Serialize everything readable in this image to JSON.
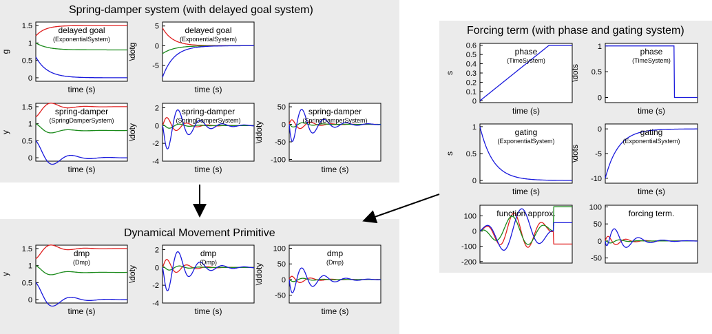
{
  "panels": {
    "spring": "Spring-damper system (with delayed goal system)",
    "forcing": "Forcing term (with phase and gating system)",
    "dmp": "Dynamical Movement Primitive"
  },
  "colors": {
    "red": "#e02020",
    "green": "#1a8a1a",
    "blue": "#1a1adc",
    "panel": "#ebebeb"
  },
  "xlabel": "time (s)",
  "chart_data": [
    {
      "id": "sd-g",
      "type": "line",
      "title": "delayed goal",
      "subtitle": "(ExponentialSystem)",
      "ylabel": "g",
      "xlabel": "time (s)",
      "ylim": [
        -0.1,
        1.6
      ],
      "yticks": [
        "0",
        "0.5",
        "1",
        "1.5"
      ],
      "ytickvals": [
        0,
        0.5,
        1,
        1.5
      ],
      "series": [
        {
          "color": "red",
          "kind": "rise",
          "a": 1.2,
          "b": 1.5,
          "k": 10
        },
        {
          "color": "green",
          "kind": "rise",
          "a": 1.0,
          "b": 0.8,
          "k": 8
        },
        {
          "color": "blue",
          "kind": "rise",
          "a": 0.6,
          "b": 0.0,
          "k": 8
        }
      ]
    },
    {
      "id": "sd-dg",
      "type": "line",
      "title": "delayed goal",
      "subtitle": "(ExponentialSystem)",
      "ylabel": "\\dotg",
      "xlabel": "time (s)",
      "ylim": [
        -9,
        6
      ],
      "yticks": [
        "-5",
        "0",
        "5"
      ],
      "ytickvals": [
        -5,
        0,
        5
      ],
      "series": [
        {
          "color": "red",
          "kind": "rise",
          "a": 4.5,
          "b": 0,
          "k": 9
        },
        {
          "color": "green",
          "kind": "rise",
          "a": -2,
          "b": 0,
          "k": 8
        },
        {
          "color": "blue",
          "kind": "rise",
          "a": -8,
          "b": 0,
          "k": 8
        }
      ]
    },
    {
      "id": "sd-y",
      "type": "line",
      "title": "spring-damper",
      "subtitle": "(SpringDamperSystem)",
      "ylabel": "y",
      "xlabel": "time (s)",
      "ylim": [
        -0.1,
        1.6
      ],
      "yticks": [
        "0",
        "0.5",
        "1",
        "1.5"
      ],
      "ytickvals": [
        0,
        0.5,
        1,
        1.5
      ],
      "series": [
        {
          "color": "red",
          "kind": "osc",
          "a": 1.2,
          "b": 1.5,
          "amp": 0.1,
          "k": 6,
          "w": 28
        },
        {
          "color": "green",
          "kind": "osc",
          "a": 1.0,
          "b": 0.8,
          "amp": 0.05,
          "k": 6,
          "w": 28
        },
        {
          "color": "blue",
          "kind": "osc",
          "a": 0.5,
          "b": 0.0,
          "amp": 0.45,
          "k": 5,
          "w": 26
        }
      ]
    },
    {
      "id": "sd-dy",
      "type": "line",
      "title": "spring-damper",
      "subtitle": "(SpringDamperSystem)",
      "ylabel": "\\doty",
      "xlabel": "time (s)",
      "ylim": [
        -4,
        2.5
      ],
      "yticks": [
        "-4",
        "-2",
        "0",
        "2"
      ],
      "ytickvals": [
        -4,
        -2,
        0,
        2
      ],
      "series": [
        {
          "color": "red",
          "kind": "damp",
          "amp": 1.4,
          "k": 6,
          "w": 28,
          "ph": 0.3
        },
        {
          "color": "green",
          "kind": "damp",
          "amp": 0.5,
          "k": 6,
          "w": 28,
          "ph": 2.5
        },
        {
          "color": "blue",
          "kind": "damp",
          "amp": -3.8,
          "k": 4.5,
          "w": 26,
          "ph": 0.2
        }
      ]
    },
    {
      "id": "sd-ddy",
      "type": "line",
      "title": "spring-damper",
      "subtitle": "(SpringDamperSystem)",
      "ylabel": "\\ddoty",
      "xlabel": "time (s)",
      "ylim": [
        -105,
        60
      ],
      "yticks": [
        "-100",
        "-50",
        "0",
        "50"
      ],
      "ytickvals": [
        -100,
        -50,
        0,
        50
      ],
      "series": [
        {
          "color": "red",
          "kind": "damp",
          "amp": 25,
          "k": 6,
          "w": 28,
          "ph": 1.2
        },
        {
          "color": "green",
          "kind": "damp",
          "amp": 12,
          "k": 6,
          "w": 28,
          "ph": 3.5
        },
        {
          "color": "blue",
          "kind": "damp",
          "amp": -80,
          "k": 4.5,
          "w": 26,
          "ph": 1.0
        }
      ]
    },
    {
      "id": "fo-phase",
      "type": "line",
      "title": "phase",
      "subtitle": "(TimeSystem)",
      "ylabel": "s",
      "xlabel": "time (s)",
      "ylim": [
        -0.02,
        0.62
      ],
      "yticks": [
        "0",
        "0.1",
        "0.2",
        "0.3",
        "0.4",
        "0.5",
        "0.6"
      ],
      "ytickvals": [
        0,
        0.1,
        0.2,
        0.3,
        0.4,
        0.5,
        0.6
      ],
      "series": [
        {
          "color": "blue",
          "kind": "ramp",
          "a": 0,
          "b": 0.6,
          "t": 0.75
        }
      ]
    },
    {
      "id": "fo-dphase",
      "type": "line",
      "title": "phase",
      "subtitle": "(TimeSystem)",
      "ylabel": "\\dots",
      "xlabel": "time (s)",
      "ylim": [
        -0.1,
        1.05
      ],
      "yticks": [
        "0",
        "0.5",
        "1"
      ],
      "ytickvals": [
        0,
        0.5,
        1
      ],
      "series": [
        {
          "color": "blue",
          "kind": "step",
          "a": 1,
          "b": 0,
          "t": 0.75
        }
      ]
    },
    {
      "id": "fo-gating",
      "type": "line",
      "title": "gating",
      "subtitle": "(ExponentialSystem)",
      "ylabel": "s",
      "xlabel": "time (s)",
      "ylim": [
        -0.05,
        1.05
      ],
      "yticks": [
        "0",
        "0.5",
        "1"
      ],
      "ytickvals": [
        0,
        0.5,
        1
      ],
      "series": [
        {
          "color": "blue",
          "kind": "rise",
          "a": 1,
          "b": 0,
          "k": 7
        }
      ]
    },
    {
      "id": "fo-dgating",
      "type": "line",
      "title": "gating",
      "subtitle": "(ExponentialSystem)",
      "ylabel": "\\dots",
      "xlabel": "time (s)",
      "ylim": [
        -11,
        1
      ],
      "yticks": [
        "-10",
        "-5",
        "0"
      ],
      "ytickvals": [
        -10,
        -5,
        0
      ],
      "series": [
        {
          "color": "blue",
          "kind": "rise",
          "a": -10,
          "b": 0,
          "k": 7
        }
      ]
    },
    {
      "id": "fo-fa",
      "type": "line",
      "title": "function approx.",
      "subtitle": "",
      "ylabel": "",
      "xlabel": "",
      "ylim": [
        -210,
        170
      ],
      "yticks": [
        "-200",
        "-100",
        "0",
        "100"
      ],
      "ytickvals": [
        -200,
        -100,
        0,
        100
      ],
      "series": [
        {
          "color": "red",
          "kind": "wav",
          "amp": 120,
          "w": 20,
          "ph": 0.5,
          "end": -85,
          "cut": 0.8
        },
        {
          "color": "green",
          "kind": "wav",
          "amp": 100,
          "w": 17,
          "ph": 2.0,
          "end": 160,
          "cut": 0.8
        },
        {
          "color": "blue",
          "kind": "wav",
          "amp": 150,
          "w": 15,
          "ph": 1.0,
          "end": 55,
          "cut": 0.8
        }
      ]
    },
    {
      "id": "fo-ft",
      "type": "line",
      "title": "forcing term.",
      "subtitle": "",
      "ylabel": "",
      "xlabel": "",
      "ylim": [
        -65,
        105
      ],
      "yticks": [
        "-50",
        "0",
        "50",
        "100"
      ],
      "ytickvals": [
        -50,
        0,
        50,
        100
      ],
      "series": [
        {
          "color": "red",
          "kind": "damp",
          "amp": 25,
          "k": 7,
          "w": 30,
          "ph": 1.0
        },
        {
          "color": "green",
          "kind": "damp",
          "amp": 10,
          "k": 7,
          "w": 30,
          "ph": 3.0
        },
        {
          "color": "blue",
          "kind": "damp",
          "amp": -60,
          "k": 5,
          "w": 24,
          "ph": 2.2
        }
      ]
    },
    {
      "id": "dmp-y",
      "type": "line",
      "title": "dmp",
      "subtitle": "(Dmp)",
      "ylabel": "y",
      "xlabel": "time (s)",
      "ylim": [
        -0.1,
        1.6
      ],
      "yticks": [
        "0",
        "0.5",
        "1",
        "1.5"
      ],
      "ytickvals": [
        0,
        0.5,
        1,
        1.5
      ],
      "series": [
        {
          "color": "red",
          "kind": "osc",
          "a": 1.2,
          "b": 1.5,
          "amp": 0.1,
          "k": 6,
          "w": 28
        },
        {
          "color": "green",
          "kind": "osc",
          "a": 1.0,
          "b": 0.8,
          "amp": 0.05,
          "k": 6,
          "w": 28
        },
        {
          "color": "blue",
          "kind": "osc",
          "a": 0.5,
          "b": 0.0,
          "amp": 0.45,
          "k": 5,
          "w": 26
        }
      ]
    },
    {
      "id": "dmp-dy",
      "type": "line",
      "title": "dmp",
      "subtitle": "(Dmp)",
      "ylabel": "\\doty",
      "xlabel": "time (s)",
      "ylim": [
        -4,
        2.5
      ],
      "yticks": [
        "-4",
        "-2",
        "0",
        "2"
      ],
      "ytickvals": [
        -4,
        -2,
        0,
        2
      ],
      "series": [
        {
          "color": "red",
          "kind": "damp",
          "amp": 1.4,
          "k": 6,
          "w": 28,
          "ph": 0.3
        },
        {
          "color": "green",
          "kind": "damp",
          "amp": 0.5,
          "k": 6,
          "w": 28,
          "ph": 2.5
        },
        {
          "color": "blue",
          "kind": "damp",
          "amp": -3.8,
          "k": 4.5,
          "w": 26,
          "ph": 0.2
        }
      ]
    },
    {
      "id": "dmp-ddy",
      "type": "line",
      "title": "dmp",
      "subtitle": "(Dmp)",
      "ylabel": "\\ddoty",
      "xlabel": "time (s)",
      "ylim": [
        -75,
        110
      ],
      "yticks": [
        "-50",
        "0",
        "50",
        "100"
      ],
      "ytickvals": [
        -50,
        0,
        50,
        100
      ],
      "series": [
        {
          "color": "red",
          "kind": "damp",
          "amp": 20,
          "k": 6,
          "w": 28,
          "ph": 1.2
        },
        {
          "color": "green",
          "kind": "damp",
          "amp": 10,
          "k": 6,
          "w": 28,
          "ph": 3.5
        },
        {
          "color": "blue",
          "kind": "damp",
          "amp": -70,
          "k": 4.5,
          "w": 26,
          "ph": 1.0
        }
      ]
    }
  ]
}
